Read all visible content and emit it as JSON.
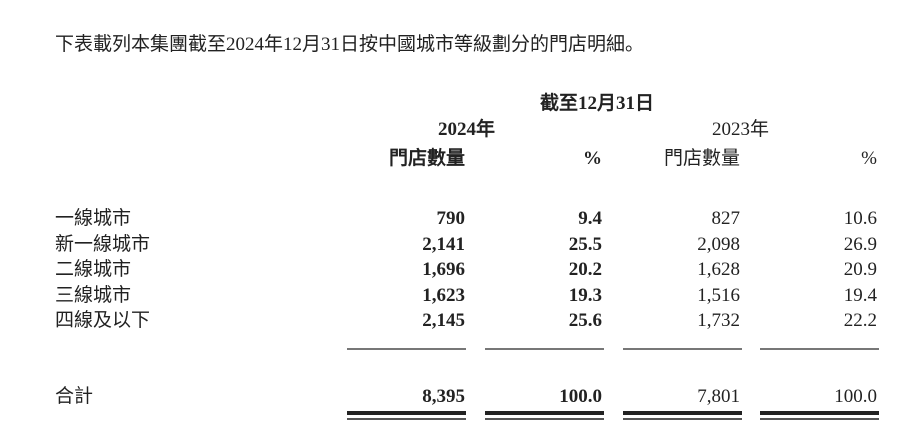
{
  "intro": "下表載列本集團截至2024年12月31日按中國城市等級劃分的門店明細。",
  "header": {
    "period": "截至12月31日",
    "year_2024": "2024年",
    "year_2023": "2023年",
    "col_stores": "門店數量",
    "col_pct": "%"
  },
  "rows": [
    {
      "label": "一線城市",
      "s2024": "790",
      "p2024": "9.4",
      "s2023": "827",
      "p2023": "10.6"
    },
    {
      "label": "新一線城市",
      "s2024": "2,141",
      "p2024": "25.5",
      "s2023": "2,098",
      "p2023": "26.9"
    },
    {
      "label": "二線城市",
      "s2024": "1,696",
      "p2024": "20.2",
      "s2023": "1,628",
      "p2023": "20.9"
    },
    {
      "label": "三線城市",
      "s2024": "1,623",
      "p2024": "19.3",
      "s2023": "1,516",
      "p2023": "19.4"
    },
    {
      "label": "四線及以下",
      "s2024": "2,145",
      "p2024": "25.6",
      "s2023": "1,732",
      "p2023": "22.2"
    }
  ],
  "total": {
    "label": "合計",
    "s2024": "8,395",
    "p2024": "100.0",
    "s2023": "7,801",
    "p2023": "100.0"
  }
}
